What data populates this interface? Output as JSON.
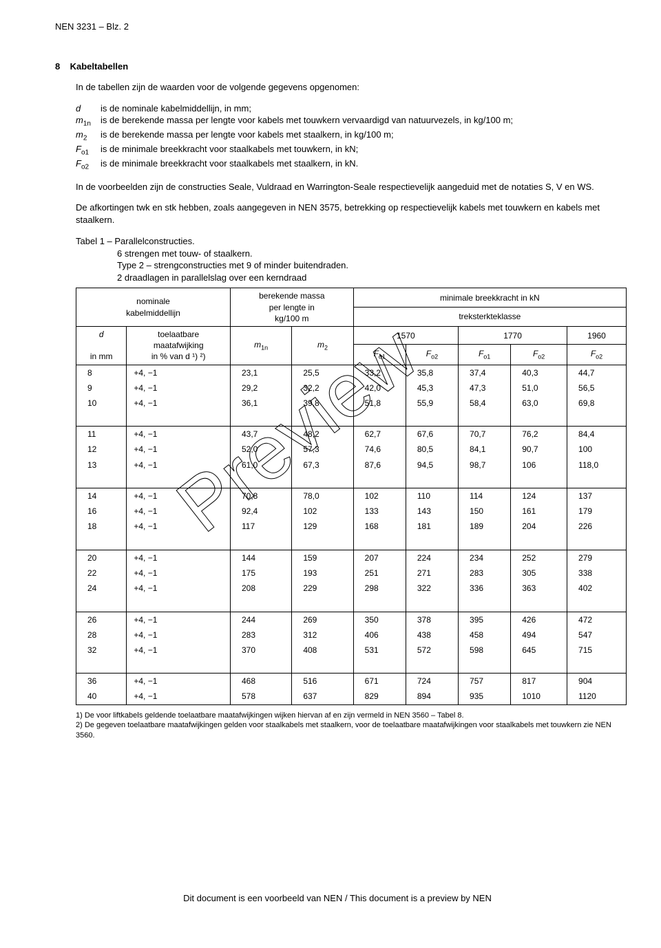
{
  "page_header": "NEN 3231 – Blz. 2",
  "section": {
    "num": "8",
    "title": "Kabeltabellen"
  },
  "intro": "In de tabellen zijn de waarden voor de volgende gegevens opgenomen:",
  "definitions": [
    {
      "sym": "d",
      "txt": "is de nominale kabelmiddellijn, in mm;"
    },
    {
      "sym": "m1n",
      "sub": "1n",
      "base": "m",
      "txt": "is de berekende massa per lengte voor kabels met touwkern vervaardigd van natuurvezels, in kg/100 m;"
    },
    {
      "sym": "m2",
      "sub": "2",
      "base": "m",
      "txt": "is de berekende massa per lengte voor kabels met staalkern, in kg/100 m;"
    },
    {
      "sym": "Fo1",
      "sub": "o1",
      "base": "F",
      "txt": "is de minimale breekkracht voor staalkabels met touwkern, in kN;"
    },
    {
      "sym": "Fo2",
      "sub": "o2",
      "base": "F",
      "txt": "is de minimale breekkracht voor staalkabels met staalkern, in kN."
    }
  ],
  "para1": "In de voorbeelden zijn de constructies Seale, Vuldraad en Warrington-Seale respectievelijk aangeduid met de notaties S, V en WS.",
  "para2": "De afkortingen twk en stk hebben, zoals aangegeven in NEN 3575, betrekking op respectievelijk kabels met touwkern en kabels met staalkern.",
  "table_title": "Tabel 1 – Parallelconstructies.",
  "table_sub": [
    "6 strengen met touw- of staalkern.",
    "Type 2 – strengconstructies met 9 of minder buitendraden.",
    "2 draadlagen in parallelslag over een kerndraad"
  ],
  "headers": {
    "col0_a": "nominale",
    "col0_b": "kabelmiddellijn",
    "mass_a": "berekende massa",
    "mass_b": "per lengte in",
    "mass_c": "kg/100 m",
    "break": "minimale breekkracht in kN",
    "trek": "treksterkteklasse",
    "cls": [
      "1570",
      "1770",
      "1960"
    ],
    "d": "d",
    "d_unit": "in mm",
    "tol_a": "toelaatbare",
    "tol_b": "maatafwijking",
    "tol_c": "in % van d ¹) ²)",
    "m1n": "m",
    "m1n_sub": "1n",
    "m2": "m",
    "m2_sub": "2",
    "Fo1": "F",
    "Fo1_sub": "o1",
    "Fo2": "F",
    "Fo2_sub": "o2"
  },
  "groups": [
    [
      [
        "8",
        "+4, −1",
        "23,1",
        "25,5",
        "33,2",
        "35,8",
        "37,4",
        "40,3",
        "44,7"
      ],
      [
        "9",
        "+4, −1",
        "29,2",
        "32,2",
        "42,0",
        "45,3",
        "47,3",
        "51,0",
        "56,5"
      ],
      [
        "10",
        "+4, −1",
        "36,1",
        "39,8",
        "51,8",
        "55,9",
        "58,4",
        "63,0",
        "69,8"
      ]
    ],
    [
      [
        "11",
        "+4, −1",
        "43,7",
        "48,2",
        "62,7",
        "67,6",
        "70,7",
        "76,2",
        "84,4"
      ],
      [
        "12",
        "+4, −1",
        "52,0",
        "57,3",
        "74,6",
        "80,5",
        "84,1",
        "90,7",
        "100"
      ],
      [
        "13",
        "+4, −1",
        "61,0",
        "67,3",
        "87,6",
        "94,5",
        "98,7",
        "106",
        "118,0"
      ]
    ],
    [
      [
        "14",
        "+4, −1",
        "70,8",
        "78,0",
        "102",
        "110",
        "114",
        "124",
        "137"
      ],
      [
        "16",
        "+4, −1",
        "92,4",
        "102",
        "133",
        "143",
        "150",
        "161",
        "179"
      ],
      [
        "18",
        "+4, −1",
        "117",
        "129",
        "168",
        "181",
        "189",
        "204",
        "226"
      ]
    ],
    [
      [
        "20",
        "+4, −1",
        "144",
        "159",
        "207",
        "224",
        "234",
        "252",
        "279"
      ],
      [
        "22",
        "+4, −1",
        "175",
        "193",
        "251",
        "271",
        "283",
        "305",
        "338"
      ],
      [
        "24",
        "+4, −1",
        "208",
        "229",
        "298",
        "322",
        "336",
        "363",
        "402"
      ]
    ],
    [
      [
        "26",
        "+4, −1",
        "244",
        "269",
        "350",
        "378",
        "395",
        "426",
        "472"
      ],
      [
        "28",
        "+4, −1",
        "283",
        "312",
        "406",
        "438",
        "458",
        "494",
        "547"
      ],
      [
        "32",
        "+4, −1",
        "370",
        "408",
        "531",
        "572",
        "598",
        "645",
        "715"
      ]
    ],
    [
      [
        "36",
        "+4, −1",
        "468",
        "516",
        "671",
        "724",
        "757",
        "817",
        "904"
      ],
      [
        "40",
        "+4, −1",
        "578",
        "637",
        "829",
        "894",
        "935",
        "1010",
        "1120"
      ]
    ]
  ],
  "notes": [
    "1) De voor liftkabels geldende toelaatbare maatafwijkingen wijken hiervan af en zijn vermeld in NEN 3560 – Tabel 8.",
    "2) De gegeven toelaatbare maatafwijkingen gelden voor staalkabels met staalkern, voor de toelaatbare maatafwijkingen voor staalkabels met touwkern zie NEN 3560."
  ],
  "footer": "Dit document is een voorbeeld van NEN / This document is a preview by NEN",
  "watermark": "Preview"
}
